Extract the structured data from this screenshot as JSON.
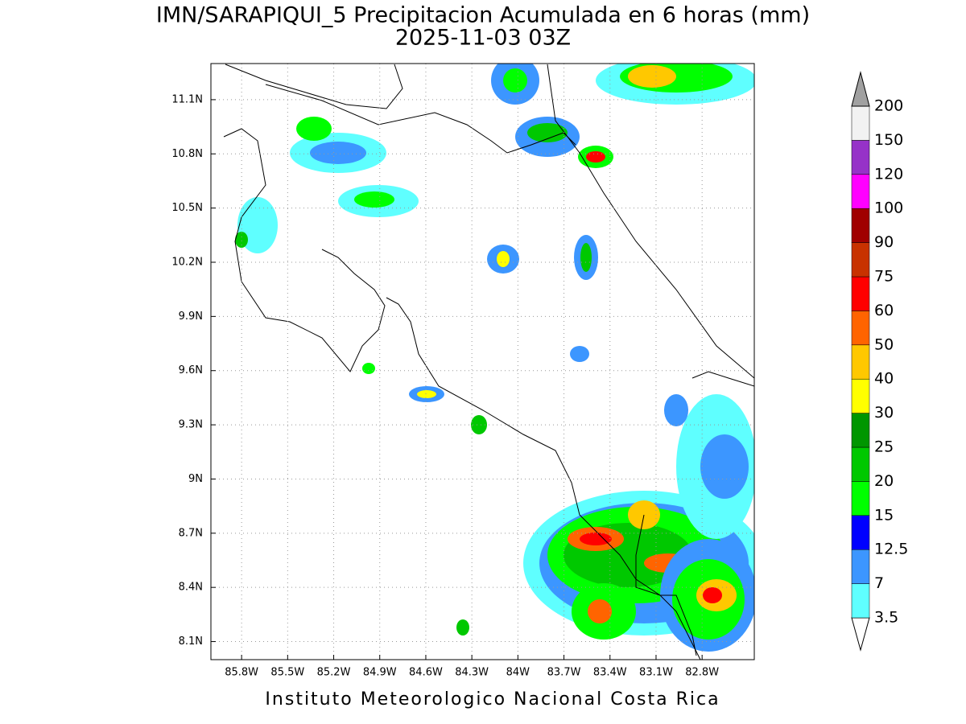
{
  "title": "IMN/SARAPIQUI_5 Precipitacion Acumulada en 6 horas (mm)",
  "subtitle": "2025-11-03 03Z",
  "lonlim": [
    -86.0,
    -82.46
  ],
  "latlim": [
    8.0,
    11.3
  ],
  "lon_ticks": [
    {
      "value": -85.8,
      "label": "85.8W"
    },
    {
      "value": -85.5,
      "label": "85.5W"
    },
    {
      "value": -85.2,
      "label": "85.2W"
    },
    {
      "value": -84.9,
      "label": "84.9W"
    },
    {
      "value": -84.6,
      "label": "84.6W"
    },
    {
      "value": -84.3,
      "label": "84.3W"
    },
    {
      "value": -84.0,
      "label": "84W"
    },
    {
      "value": -83.7,
      "label": "83.7W"
    },
    {
      "value": -83.4,
      "label": "83.4W"
    },
    {
      "value": -83.1,
      "label": "83.1W"
    },
    {
      "value": -82.8,
      "label": "82.8W"
    }
  ],
  "lat_ticks": [
    {
      "value": 11.1,
      "label": "11.1N"
    },
    {
      "value": 10.8,
      "label": "10.8N"
    },
    {
      "value": 10.5,
      "label": "10.5N"
    },
    {
      "value": 10.2,
      "label": "10.2N"
    },
    {
      "value": 9.9,
      "label": "9.9N"
    },
    {
      "value": 9.6,
      "label": "9.6N"
    },
    {
      "value": 9.3,
      "label": "9.3N"
    },
    {
      "value": 9.0,
      "label": "9N"
    },
    {
      "value": 8.7,
      "label": "8.7N"
    },
    {
      "value": 8.4,
      "label": "8.4N"
    },
    {
      "value": 8.1,
      "label": "8.1N"
    }
  ],
  "colorbar": {
    "levels": [
      3.5,
      7,
      12.5,
      15,
      20,
      25,
      30,
      40,
      50,
      60,
      75,
      90,
      100,
      120,
      150,
      200
    ],
    "colors": [
      "#ffffff",
      "#5fffff",
      "#3c96ff",
      "#0000ff",
      "#00ff00",
      "#00c800",
      "#009600",
      "#ffff00",
      "#ffc800",
      "#ff6400",
      "#ff0000",
      "#c83200",
      "#a00000",
      "#ff00ff",
      "#9632c8",
      "#f2f2f2",
      "#a0a0a0"
    ]
  },
  "footer": "Instituto Meteorologico Nacional Costa Rica"
}
